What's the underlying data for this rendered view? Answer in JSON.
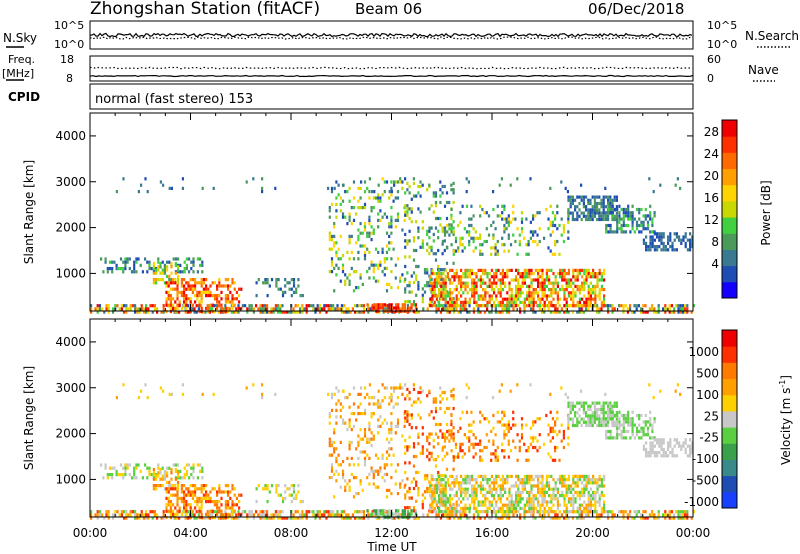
{
  "header": {
    "station": "Zhongshan Station (fitACF)",
    "beam": "Beam 06",
    "date": "06/Dec/2018"
  },
  "status_panel": {
    "nsky_label": "N.Sky",
    "nsearch_label": "N.Search",
    "left_top": "10^5",
    "left_bottom": "10^0",
    "right_top": "10^5",
    "right_bottom": "10^0",
    "freq_label_1": "Freq.",
    "freq_label_2": "[MHz]",
    "freq_top": "18",
    "freq_bottom": "8",
    "nave_label": "Nave",
    "nave_top": "60",
    "nave_bottom": "0",
    "cpid_label": "CPID",
    "cpid_text": "normal (fast stereo) 153"
  },
  "chart_data": [
    {
      "type": "heatmap",
      "title": "",
      "ylabel": "Slant Range [km]",
      "xlabel": "",
      "y_ticks": [
        "1000",
        "2000",
        "3000",
        "4000"
      ],
      "ylim": [
        180,
        4500
      ],
      "xlim_hours": [
        0,
        24
      ],
      "colorbar": {
        "label": "Power [dB]",
        "ticks": [
          "4",
          "8",
          "12",
          "16",
          "20",
          "24",
          "28"
        ],
        "colors": [
          "#1400ff",
          "#1e4eb4",
          "#3a7a90",
          "#4a9a5a",
          "#40d040",
          "#c8d800",
          "#ffd400",
          "#ffa000",
          "#ff6a00",
          "#ff3000",
          "#ee0000"
        ]
      }
    },
    {
      "type": "heatmap",
      "title": "",
      "ylabel": "Slant Range [km]",
      "xlabel": "Time UT",
      "x_ticks": [
        "00:00",
        "04:00",
        "08:00",
        "12:00",
        "16:00",
        "20:00",
        "00:00"
      ],
      "y_ticks": [
        "1000",
        "2000",
        "3000",
        "4000"
      ],
      "ylim": [
        180,
        4500
      ],
      "xlim_hours": [
        0,
        24
      ],
      "colorbar": {
        "label": "Velocity [m s",
        "label_sup": "-1",
        "label_end": "]",
        "ticks": [
          "1000",
          "500",
          "100",
          "25",
          "-25",
          "-100",
          "-500",
          "-1000"
        ],
        "colors": [
          "#1840ff",
          "#1e4eb4",
          "#3a8a8a",
          "#3aa04a",
          "#5ad040",
          "#c8c8c8",
          "#ffd000",
          "#ffa000",
          "#ff7a00",
          "#ff3000",
          "#ee0000"
        ]
      }
    }
  ]
}
